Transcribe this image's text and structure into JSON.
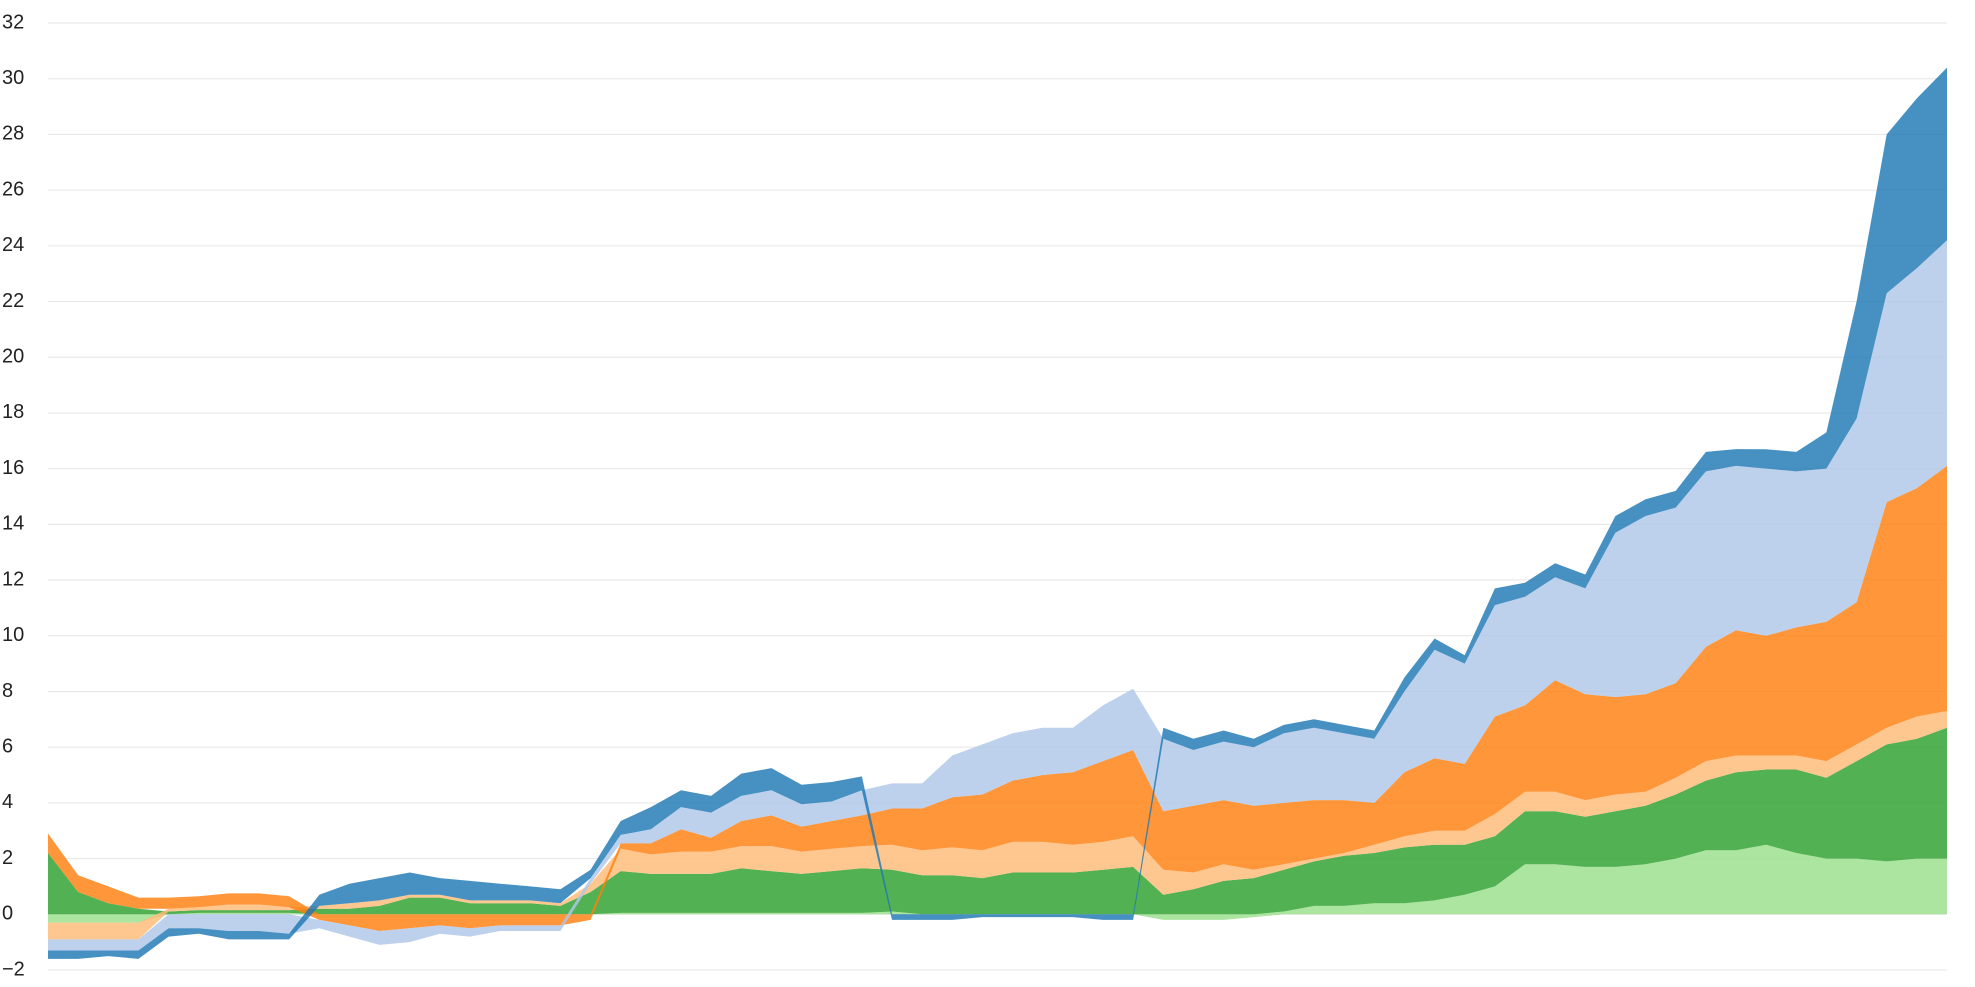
{
  "chart_data": {
    "type": "stacked-area",
    "categories": [
      null,
      null,
      null,
      null,
      null,
      null,
      null,
      null,
      null,
      null,
      null,
      null,
      null,
      null,
      null,
      null,
      null,
      null,
      null,
      null,
      null,
      null,
      null,
      null,
      null,
      null,
      null,
      null,
      null,
      null,
      null,
      null,
      null,
      null,
      null,
      null,
      null,
      null,
      null,
      null,
      null,
      null,
      null,
      null,
      null,
      null,
      null,
      null,
      null,
      null,
      null,
      null,
      null,
      null,
      null,
      null,
      null,
      null,
      null,
      null,
      null,
      null,
      null,
      null
    ],
    "series": [
      {
        "color": "#98df8a",
        "values": [
          -0.3,
          -0.3,
          -0.3,
          -0.3,
          0,
          0.05,
          0.05,
          0.05,
          0.05,
          0,
          0,
          0,
          0,
          0,
          0,
          0,
          0,
          0,
          0,
          0.05,
          0.05,
          0.05,
          0.05,
          0.05,
          0.05,
          0.05,
          0.05,
          0.05,
          0.1,
          0,
          0,
          0,
          0,
          0,
          0,
          0,
          0,
          -0.2,
          -0.2,
          -0.2,
          -0.1,
          0.1,
          0.3,
          0.3,
          0.4,
          0.4,
          0.5,
          0.7,
          1.0,
          1.8,
          1.8,
          1.7,
          1.7,
          1.8,
          2.0,
          2.3,
          2.3,
          2.5,
          2.2,
          2.0,
          2.0,
          1.9,
          2.0,
          2.0
        ]
      },
      {
        "color": "#2ca02c",
        "values": [
          2.2,
          0.8,
          0.4,
          0.2,
          0.1,
          0.1,
          0.1,
          0.1,
          0.1,
          0.2,
          0.2,
          0.3,
          0.6,
          0.6,
          0.4,
          0.4,
          0.4,
          0.3,
          0.8,
          1.5,
          1.4,
          1.4,
          1.4,
          1.6,
          1.5,
          1.4,
          1.5,
          1.6,
          1.5,
          1.4,
          1.4,
          1.3,
          1.5,
          1.5,
          1.5,
          1.6,
          1.7,
          0.7,
          0.9,
          1.2,
          1.3,
          1.5,
          1.6,
          1.8,
          1.8,
          2.0,
          2.0,
          1.8,
          1.8,
          1.9,
          1.9,
          1.8,
          2.0,
          2.1,
          2.3,
          2.5,
          2.8,
          2.7,
          3.0,
          2.9,
          3.5,
          4.2,
          4.3,
          4.7
        ]
      },
      {
        "color": "#ffbb78",
        "values": [
          -0.6,
          -0.6,
          -0.6,
          -0.6,
          0.1,
          0.1,
          0.2,
          0.2,
          0.1,
          0.1,
          0.2,
          0.2,
          0.1,
          0.1,
          0.1,
          0.1,
          0.1,
          0.1,
          0.3,
          0.8,
          0.7,
          0.8,
          0.8,
          0.8,
          0.9,
          0.8,
          0.8,
          0.8,
          0.9,
          0.9,
          1.0,
          1.0,
          1.1,
          1.1,
          1.0,
          1.0,
          1.1,
          0.9,
          0.6,
          0.6,
          0.3,
          0.2,
          0.1,
          0.1,
          0.3,
          0.4,
          0.5,
          0.5,
          0.8,
          0.7,
          0.7,
          0.6,
          0.6,
          0.5,
          0.6,
          0.7,
          0.6,
          0.5,
          0.5,
          0.6,
          0.6,
          0.6,
          0.8,
          0.6
        ]
      },
      {
        "color": "#ff7f0e",
        "values": [
          0.7,
          0.6,
          0.6,
          0.4,
          0.4,
          0.4,
          0.4,
          0.4,
          0.4,
          -0.2,
          -0.4,
          -0.6,
          -0.5,
          -0.4,
          -0.5,
          -0.4,
          -0.4,
          -0.4,
          -0.2,
          0.2,
          0.4,
          0.8,
          0.5,
          0.9,
          1.1,
          0.9,
          1.0,
          1.1,
          1.3,
          1.5,
          1.8,
          2.0,
          2.2,
          2.4,
          2.6,
          2.9,
          3.1,
          2.1,
          2.4,
          2.3,
          2.3,
          2.2,
          2.1,
          1.9,
          1.5,
          2.3,
          2.6,
          2.4,
          3.5,
          3.1,
          4.0,
          3.8,
          3.5,
          3.5,
          3.4,
          4.1,
          4.5,
          4.3,
          4.6,
          5.0,
          5.1,
          8.1,
          8.2,
          8.8
        ]
      },
      {
        "color": "#aec7e8",
        "values": [
          -0.4,
          -0.4,
          -0.4,
          -0.4,
          -0.5,
          -0.5,
          -0.6,
          -0.6,
          -0.7,
          -0.3,
          -0.4,
          -0.5,
          -0.5,
          -0.3,
          -0.3,
          -0.2,
          -0.2,
          -0.2,
          0.2,
          0.3,
          0.5,
          0.8,
          0.9,
          0.9,
          0.9,
          0.8,
          0.7,
          0.9,
          0.9,
          0.9,
          1.5,
          1.8,
          1.7,
          1.7,
          1.6,
          2.0,
          2.2,
          2.6,
          2.0,
          2.1,
          2.1,
          2.5,
          2.6,
          2.4,
          2.3,
          2.9,
          3.9,
          3.6,
          4.0,
          3.9,
          3.7,
          3.8,
          5.9,
          6.4,
          6.3,
          6.3,
          5.9,
          6.0,
          5.6,
          5.5,
          6.6,
          7.5,
          7.9,
          8.1
        ]
      },
      {
        "color": "#1f77b4",
        "values": [
          -0.3,
          -0.3,
          -0.2,
          -0.3,
          -0.3,
          -0.2,
          -0.3,
          -0.3,
          -0.2,
          0.4,
          0.7,
          0.8,
          0.8,
          0.6,
          0.7,
          0.6,
          0.5,
          0.5,
          0.3,
          0.5,
          0.8,
          0.6,
          0.6,
          0.8,
          0.8,
          0.7,
          0.7,
          0.5,
          -0.2,
          -0.2,
          -0.2,
          -0.1,
          -0.1,
          -0.1,
          -0.1,
          -0.2,
          -0.2,
          0.4,
          0.4,
          0.4,
          0.3,
          0.3,
          0.3,
          0.3,
          0.3,
          0.5,
          0.4,
          0.3,
          0.6,
          0.5,
          0.5,
          0.5,
          0.6,
          0.6,
          0.6,
          0.7,
          0.6,
          0.7,
          0.7,
          1.3,
          4.2,
          5.7,
          6.1,
          6.2
        ]
      }
    ],
    "ylim": [
      -2,
      32
    ],
    "yticks": [
      {
        "value": -2,
        "label": "−2"
      },
      0,
      2,
      4,
      6,
      8,
      10,
      12,
      14,
      16,
      18,
      20,
      22,
      24,
      26,
      28,
      30,
      32
    ],
    "grid": true
  }
}
